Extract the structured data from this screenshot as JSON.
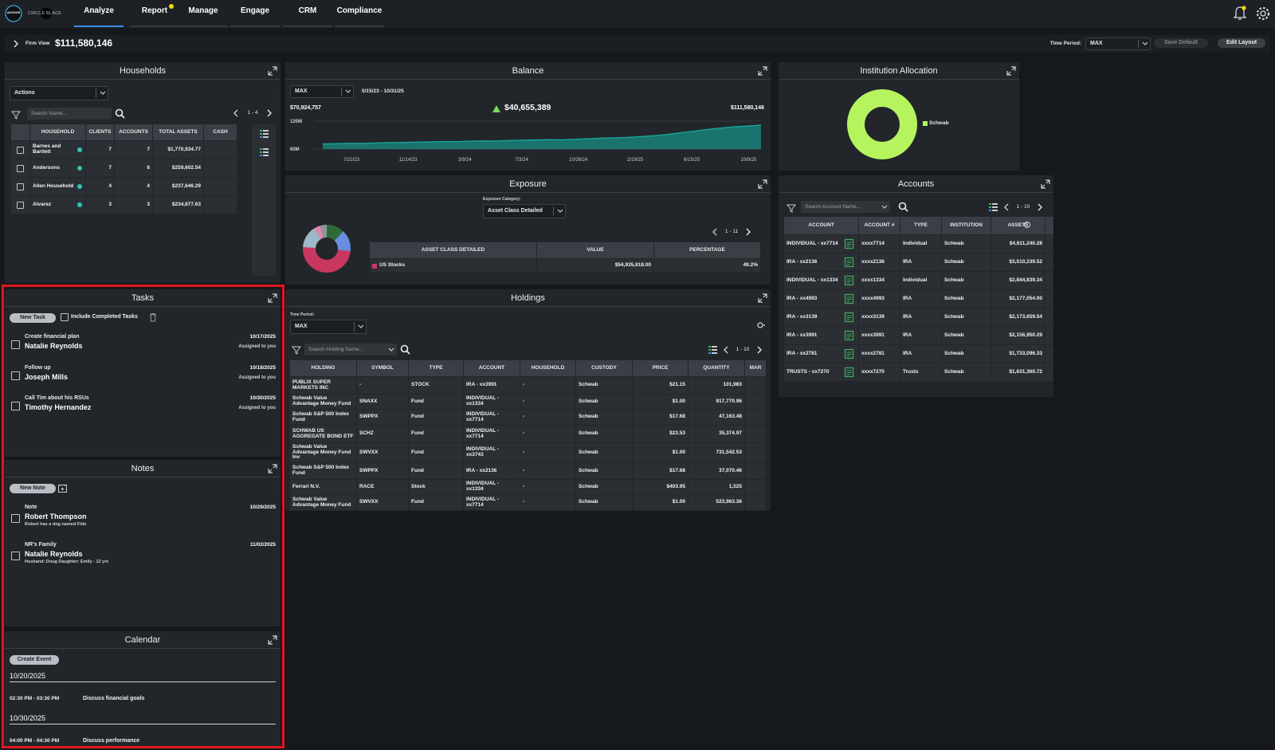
{
  "nav": {
    "logo": "ADVISOR",
    "brand": "CIRCLE BLACK",
    "tabs": [
      "Analyze",
      "Report",
      "Manage",
      "Engage",
      "CRM",
      "Compliance"
    ]
  },
  "toolbar": {
    "firm_view_label": "Firm View",
    "firm_view_value": "$111,580,146",
    "time_period_label": "Time Period:",
    "time_period_value": "MAX",
    "save_default": "Save Default",
    "edit_layout": "Edit Layout"
  },
  "households": {
    "title": "Households",
    "actions": "Actions",
    "search": "Search Name...",
    "pager": "1 - 4",
    "columns": [
      "HOUSEHOLD",
      "CLIENTS",
      "ACCOUNTS",
      "TOTAL ASSETS",
      "CASH"
    ],
    "rows": [
      [
        "Barnes and Bartlett",
        "7",
        "7",
        "$1,770,934.77"
      ],
      [
        "Andersons",
        "7",
        "6",
        "$259,602.54"
      ],
      [
        "Allen Household",
        "4",
        "4",
        "$237,646.29"
      ],
      [
        "Alvarez",
        "3",
        "3",
        "$234,877.63"
      ]
    ]
  },
  "balance": {
    "title": "Balance",
    "period": "MAX",
    "range": "5/15/23 - 10/31/25",
    "start": "$70,924,757",
    "change": "$40,655,389",
    "end": "$111,580,146",
    "chart": {
      "type": "area",
      "color": "#16a697",
      "ylim": [
        60000000,
        120000000
      ],
      "yticks": [
        {
          "value": 120000000,
          "label": "120M"
        },
        {
          "value": 60000000,
          "label": "60M"
        }
      ],
      "values": [
        70924757,
        71500000,
        72300000,
        72000000,
        73100000,
        73800000,
        74200000,
        74900000,
        75300000,
        76100000,
        76000000,
        76800000,
        77400000,
        77200000,
        78300000,
        78900000,
        79500000,
        80200000,
        79700000,
        81000000,
        82100000,
        83400000,
        84000000,
        85200000,
        86900000,
        88700000,
        91500000,
        95200000,
        98400000,
        102300000,
        105100000,
        107800000,
        109400000,
        111580146
      ],
      "x_labels": [
        "7/22/23",
        "11/14/23",
        "3/9/24",
        "7/3/24",
        "10/26/24",
        "2/19/25",
        "6/15/25",
        "10/9/25"
      ]
    }
  },
  "institution": {
    "title": "Institution Allocation",
    "chart": {
      "type": "pie",
      "categories": [
        "Schwab"
      ],
      "values": [
        100
      ],
      "colors": [
        "#b6f45e"
      ]
    }
  },
  "exposure": {
    "title": "Exposure",
    "category_label": "Exposure Category:",
    "category": "Asset Class Detailed",
    "pager": "1 - 11",
    "columns": [
      "ASSET CLASS DETAILED",
      "VALUE",
      "PERCENTAGE"
    ],
    "rows": [
      [
        "US Stocks",
        "$54,935,818.00",
        "49.2%"
      ]
    ],
    "chart": {
      "type": "pie",
      "values": [
        12.2,
        14.5,
        49.2,
        15.3,
        4.1,
        4.7
      ],
      "colors": [
        "#2f6b3a",
        "#6b8de0",
        "#c8375f",
        "#9fb8c9",
        "#e487a6",
        "#8d959e"
      ]
    }
  },
  "accounts": {
    "title": "Accounts",
    "search": "Search Account Name...",
    "pager": "1 - 10",
    "columns": [
      "ACCOUNT",
      "ACCOUNT #",
      "TYPE",
      "INSTITUTION",
      "ASSETS"
    ],
    "rows": [
      [
        "INDIVIDUAL - xx7714",
        "xxxx7714",
        "Individual",
        "Schwab",
        "$4,611,240.28"
      ],
      [
        "IRA - xx2136",
        "xxxx2136",
        "IRA",
        "Schwab",
        "$3,510,239.52"
      ],
      [
        "INDIVIDUAL - xx1334",
        "xxxx1334",
        "Individual",
        "Schwab",
        "$2,844,839.34"
      ],
      [
        "IRA - xx4993",
        "xxxx4993",
        "IRA",
        "Schwab",
        "$2,177,054.00"
      ],
      [
        "IRA - xx3139",
        "xxxx3139",
        "IRA",
        "Schwab",
        "$2,173,659.54"
      ],
      [
        "IRA - xx3991",
        "xxxx3991",
        "IRA",
        "Schwab",
        "$2,156,950.29"
      ],
      [
        "IRA - xx2781",
        "xxxx2781",
        "IRA",
        "Schwab",
        "$1,733,096.33"
      ],
      [
        "TRUSTS - xx7270",
        "xxxx7270",
        "Trusts",
        "Schwab",
        "$1,631,360.72"
      ]
    ]
  },
  "tasks": {
    "title": "Tasks",
    "new": "New Task",
    "include": "Include Completed Tasks",
    "items": [
      {
        "title": "Create financial plan",
        "name": "Natalie Reynolds",
        "date": "10/17/2025",
        "assignee": "Assigned to you"
      },
      {
        "title": "Follow up",
        "name": "Joseph Mills",
        "date": "10/18/2025",
        "assignee": "Assigned to you"
      },
      {
        "title": "Call Tim about his RSUs",
        "name": "Timothy Hernandez",
        "date": "10/30/2025",
        "assignee": "Assigned to you"
      }
    ]
  },
  "notes": {
    "title": "Notes",
    "new": "New Note",
    "items": [
      {
        "title": "Note",
        "name": "Robert Thompson",
        "text": "Robert has a dog named Fido",
        "date": "10/29/2025"
      },
      {
        "title": "NR's Family",
        "name": "Natalie Reynolds",
        "text": "Husband: Doug Daughter: Emily - 12 y/o",
        "date": "11/02/2025"
      }
    ]
  },
  "calendar": {
    "title": "Calendar",
    "create": "Create Event",
    "days": [
      {
        "date": "10/20/2025",
        "events": [
          {
            "time": "02:30 PM - 03:30 PM",
            "title": "Discuss financial goals"
          }
        ]
      },
      {
        "date": "10/30/2025",
        "events": [
          {
            "time": "04:00 PM - 04:30 PM",
            "title": "Discuss performance"
          }
        ]
      }
    ]
  },
  "holdings": {
    "title": "Holdings",
    "period_label": "Time Period:",
    "period": "MAX",
    "search": "Search Holding Name...",
    "pager": "1 - 10",
    "columns": [
      "HOLDING",
      "SYMBOL",
      "TYPE",
      "ACCOUNT",
      "HOUSEHOLD",
      "CUSTODY",
      "PRICE",
      "QUANTITY",
      "MAR"
    ],
    "rows": [
      [
        "PUBLIX SUPER MARKETS INC",
        "-",
        "STOCK",
        "IRA - xx3991",
        "-",
        "Schwab",
        "$21.15",
        "101,983"
      ],
      [
        "Schwab Value Advantage Money Fund",
        "SNAXX",
        "Fund",
        "INDIVIDUAL - xx1334",
        "-",
        "Schwab",
        "$1.00",
        "917,770.96"
      ],
      [
        "Schwab S&P 500 Index Fund",
        "SWPPX",
        "Fund",
        "INDIVIDUAL - xx7714",
        "-",
        "Schwab",
        "$17.68",
        "47,163.48"
      ],
      [
        "SCHWAB US AGGREGATE BOND ETF",
        "SCHZ",
        "Fund",
        "INDIVIDUAL - xx7714",
        "-",
        "Schwab",
        "$23.53",
        "35,374.97"
      ],
      [
        "Schwab Value Advantage Money Fund Inv",
        "SWVXX",
        "Fund",
        "INDIVIDUAL - xx3743",
        "-",
        "Schwab",
        "$1.00",
        "731,542.53"
      ],
      [
        "Schwab S&P 500 Index Fund",
        "SWPPX",
        "Fund",
        "IRA - xx2136",
        "-",
        "Schwab",
        "$17.68",
        "37,070.46"
      ],
      [
        "Ferrari N.V.",
        "RACE",
        "Stock",
        "INDIVIDUAL - xx1334",
        "-",
        "Schwab",
        "$403.95",
        "1,525"
      ],
      [
        "Schwab Value Advantage Money Fund",
        "SWVXX",
        "Fund",
        "INDIVIDUAL - xx7714",
        "-",
        "Schwab",
        "$1.00",
        "523,963.36"
      ]
    ]
  }
}
